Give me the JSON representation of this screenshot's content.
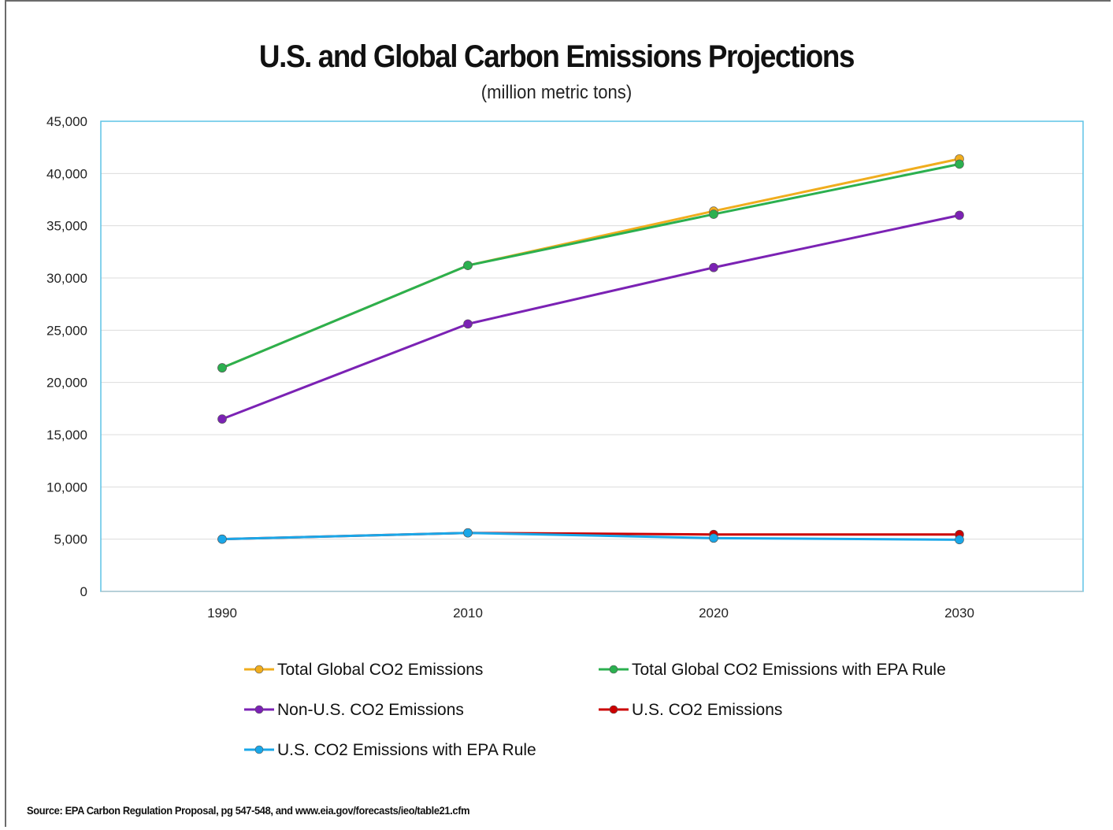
{
  "chart_data": {
    "type": "line",
    "title": "U.S. and Global Carbon Emissions Projections",
    "subtitle": "(million metric tons)",
    "x": [
      "1990",
      "2010",
      "2020",
      "2030"
    ],
    "ylim": [
      0,
      45000
    ],
    "yticks": [
      "0",
      "5,000",
      "10,000",
      "15,000",
      "20,000",
      "25,000",
      "30,000",
      "35,000",
      "40,000",
      "45,000"
    ],
    "grid": true,
    "legend_position": "bottom",
    "series": [
      {
        "name": "Total Global CO2 Emissions",
        "color": "#f0ad1e",
        "values": [
          21400,
          31200,
          36400,
          41400
        ]
      },
      {
        "name": "Total Global CO2 Emissions with EPA Rule",
        "color": "#2bb04f",
        "values": [
          21400,
          31200,
          36100,
          40900
        ]
      },
      {
        "name": "Non-U.S. CO2 Emissions",
        "color": "#7b22b4",
        "values": [
          16500,
          25600,
          31000,
          36000
        ]
      },
      {
        "name": "U.S. CO2 Emissions",
        "color": "#cc0000",
        "values": [
          5000,
          5600,
          5450,
          5450
        ]
      },
      {
        "name": "U.S. CO2 Emissions with EPA Rule",
        "color": "#1aa7e8",
        "values": [
          5000,
          5600,
          5100,
          4950
        ]
      }
    ]
  },
  "source": "Source: EPA Carbon Regulation Proposal, pg 547-548, and www.eia.gov/forecasts/ieo/table21.cfm"
}
